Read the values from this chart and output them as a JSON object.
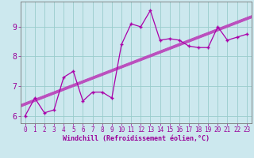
{
  "title": "",
  "xlabel": "Windchill (Refroidissement éolien,°C)",
  "x_data": [
    0,
    1,
    2,
    3,
    4,
    5,
    6,
    7,
    8,
    9,
    10,
    11,
    12,
    13,
    14,
    15,
    16,
    17,
    18,
    19,
    20,
    21,
    22,
    23
  ],
  "y_data": [
    6.0,
    6.6,
    6.1,
    6.2,
    7.3,
    7.5,
    6.5,
    6.8,
    6.8,
    6.6,
    8.4,
    9.1,
    9.0,
    9.55,
    8.55,
    8.6,
    8.55,
    8.35,
    8.3,
    8.3,
    9.0,
    8.55,
    8.65,
    8.75
  ],
  "line_color": "#aa00aa",
  "marker_color": "#aa00aa",
  "regression_color": "#bb44bb",
  "background_color": "#cce8ee",
  "grid_color": "#99cccc",
  "tick_color": "#990099",
  "border_color": "#777777",
  "ylim": [
    5.75,
    9.85
  ],
  "xlim": [
    -0.5,
    23.5
  ],
  "yticks": [
    6,
    7,
    8,
    9
  ],
  "xticks": [
    0,
    1,
    2,
    3,
    4,
    5,
    6,
    7,
    8,
    9,
    10,
    11,
    12,
    13,
    14,
    15,
    16,
    17,
    18,
    19,
    20,
    21,
    22,
    23
  ],
  "xtick_labels": [
    "0",
    "1",
    "2",
    "3",
    "4",
    "5",
    "6",
    "7",
    "8",
    "9",
    "10",
    "11",
    "12",
    "13",
    "14",
    "15",
    "16",
    "17",
    "18",
    "19",
    "20",
    "21",
    "22",
    "23"
  ],
  "label_fontsize": 6.0,
  "tick_fontsize": 5.5,
  "ytick_fontsize": 7.0
}
